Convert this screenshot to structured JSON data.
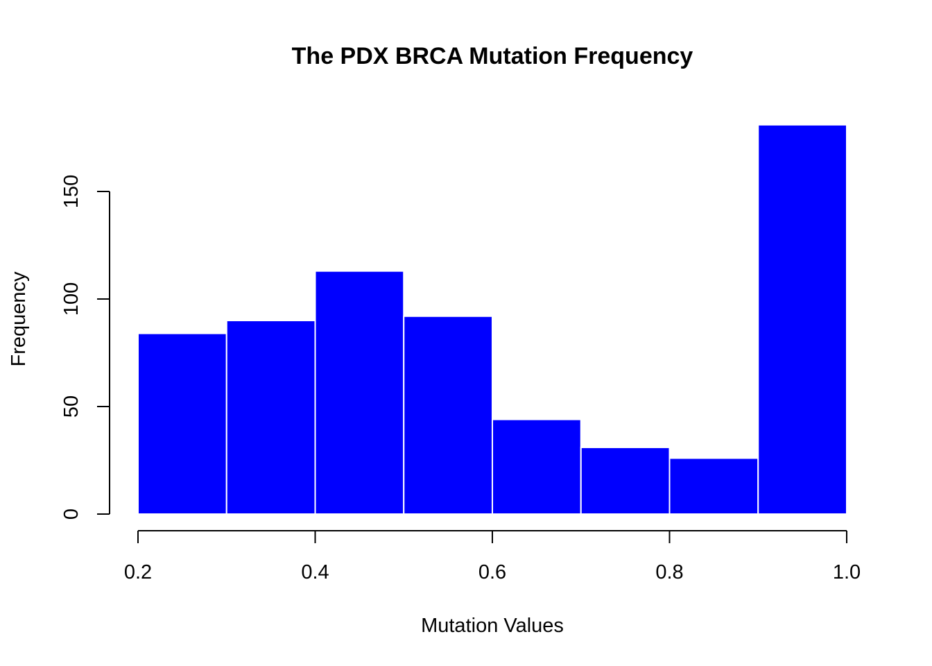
{
  "chart_data": {
    "type": "bar",
    "title": "The PDX BRCA Mutation Frequency",
    "xlabel": "Mutation Values",
    "ylabel": "Frequency",
    "bin_edges": [
      0.2,
      0.3,
      0.4,
      0.5,
      0.6,
      0.7,
      0.8,
      0.9,
      1.0
    ],
    "values": [
      84,
      90,
      113,
      92,
      44,
      31,
      26,
      181
    ],
    "x_ticks": [
      0.2,
      0.4,
      0.6,
      0.8,
      1.0
    ],
    "x_tick_labels": [
      "0.2",
      "0.4",
      "0.6",
      "0.8",
      "1.0"
    ],
    "y_ticks": [
      0,
      50,
      100,
      150
    ],
    "y_tick_labels": [
      "0",
      "50",
      "100",
      "150"
    ],
    "xlim": [
      0.2,
      1.0
    ],
    "ylim": [
      0,
      181
    ],
    "grid": false,
    "bar_color": "#0000ff",
    "bar_border_color": "#ffffff"
  }
}
